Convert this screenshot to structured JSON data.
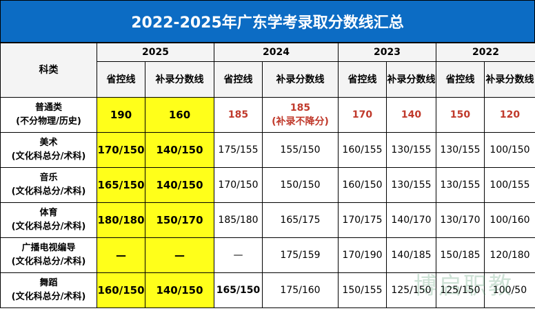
{
  "title": "2022-2025年广东学考录取分数线汇总",
  "header": {
    "category_label": "科类",
    "years": [
      "2025",
      "2024",
      "2023",
      "2022"
    ],
    "subheaders": [
      "省控线",
      "补录分数线",
      "省控线",
      "补录分数线",
      "省控线",
      "补录分数线",
      "省控线",
      "补录分数线"
    ]
  },
  "rows": [
    {
      "category": [
        "普通类",
        "(不分物理/历史)"
      ],
      "cells": [
        "190",
        "160",
        "185",
        "185",
        "170",
        "140",
        "150",
        "120"
      ],
      "notes": {
        "3": "(补录不降分)"
      }
    },
    {
      "category": [
        "美术",
        "(文化科总分/术科)"
      ],
      "cells": [
        "170/150",
        "140/150",
        "175/155",
        "155/150",
        "160/155",
        "130/155",
        "130/155",
        "100/150"
      ]
    },
    {
      "category": [
        "音乐",
        "(文化科总分/术科)"
      ],
      "cells": [
        "165/150",
        "140/150",
        "170/150",
        "150/150",
        "160/150",
        "130/155",
        "130/155",
        "100/155"
      ]
    },
    {
      "category": [
        "体育",
        "(文化科总分/术科)"
      ],
      "cells": [
        "180/180",
        "150/170",
        "185/180",
        "165/175",
        "170/175",
        "140/170",
        "130/170",
        "100/160"
      ]
    },
    {
      "category": [
        "广播电视编导",
        "(文化科总分/术科)"
      ],
      "cells": [
        "—",
        "—",
        "—",
        "175/159",
        "170/190",
        "140/185",
        "150/185",
        "120/180"
      ]
    },
    {
      "category": [
        "舞蹈",
        "(文化科总分/术科)"
      ],
      "cells": [
        "160/150",
        "140/150",
        "165/150",
        "175/160",
        "150/155",
        "125/150",
        "125/150",
        "100/50"
      ]
    }
  ],
  "watermark": "博启职教"
}
